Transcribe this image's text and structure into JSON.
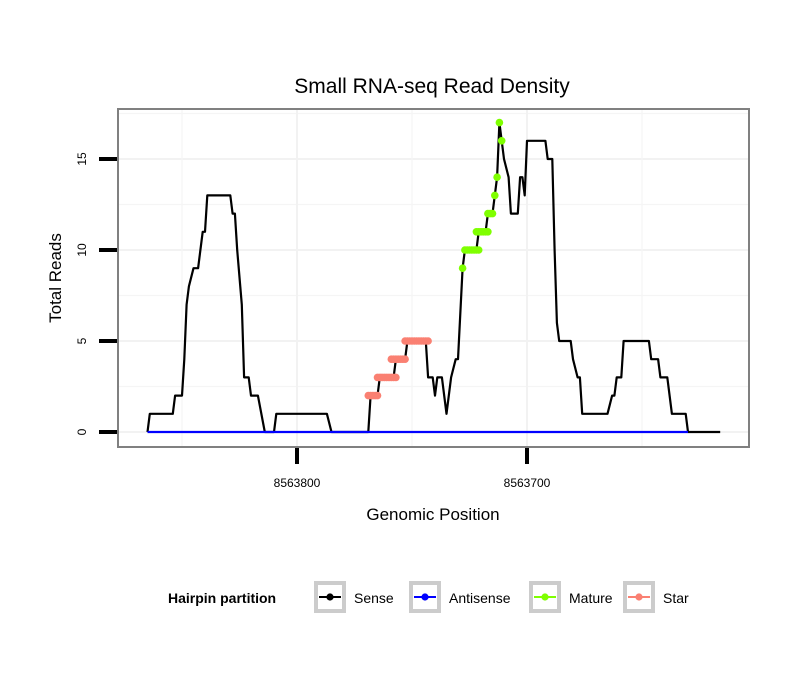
{
  "chart_data": {
    "type": "line",
    "title": "Small RNA-seq Read Density",
    "xlabel": "Genomic Position",
    "ylabel": "Total Reads",
    "x_reversed": true,
    "xlim": [
      8563878,
      8563603
    ],
    "ylim": [
      -0.85,
      17.8
    ],
    "x_ticks": [
      8563800,
      8563700
    ],
    "x_tick_labels": [
      "8563800",
      "8563700"
    ],
    "y_ticks": [
      0,
      5,
      10,
      15
    ],
    "y_tick_labels": [
      "0",
      "5",
      "10",
      "15"
    ],
    "grid": true,
    "legend": {
      "title": "Hairpin partition",
      "position": "bottom",
      "entries": [
        {
          "name": "Sense",
          "color": "#000000"
        },
        {
          "name": "Antisense",
          "color": "#0000ff"
        },
        {
          "name": "Mature",
          "color": "#7fff00"
        },
        {
          "name": "Star",
          "color": "#fa8072"
        }
      ]
    },
    "series": [
      {
        "name": "Sense",
        "color": "#000000",
        "style": "line",
        "points": [
          [
            8563865,
            0
          ],
          [
            8563864,
            1
          ],
          [
            8563854,
            1
          ],
          [
            8563853,
            2
          ],
          [
            8563850,
            2
          ],
          [
            8563849,
            4
          ],
          [
            8563848,
            7
          ],
          [
            8563847,
            8
          ],
          [
            8563845,
            9
          ],
          [
            8563843,
            9
          ],
          [
            8563841,
            11
          ],
          [
            8563840,
            11
          ],
          [
            8563839,
            13
          ],
          [
            8563829,
            13
          ],
          [
            8563828,
            12
          ],
          [
            8563827,
            12
          ],
          [
            8563826,
            10
          ],
          [
            8563824,
            7
          ],
          [
            8563823,
            3
          ],
          [
            8563821,
            3
          ],
          [
            8563820,
            2
          ],
          [
            8563817,
            2
          ],
          [
            8563814,
            0
          ],
          [
            8563810,
            0
          ],
          [
            8563809,
            1
          ],
          [
            8563787,
            1
          ],
          [
            8563785,
            0
          ],
          [
            8563769,
            0
          ],
          [
            8563768,
            2
          ],
          [
            8563765,
            2
          ],
          [
            8563764,
            3
          ],
          [
            8563758,
            3
          ],
          [
            8563757,
            4
          ],
          [
            8563753,
            4
          ],
          [
            8563752,
            5
          ],
          [
            8563744,
            5
          ],
          [
            8563743,
            3
          ],
          [
            8563741,
            3
          ],
          [
            8563740,
            2
          ],
          [
            8563739,
            3
          ],
          [
            8563737,
            3
          ],
          [
            8563735,
            1
          ],
          [
            8563733,
            3
          ],
          [
            8563731,
            4
          ],
          [
            8563730,
            4
          ],
          [
            8563728,
            9
          ],
          [
            8563727,
            10
          ],
          [
            8563722,
            10
          ],
          [
            8563721,
            11
          ],
          [
            8563718,
            11
          ],
          [
            8563717,
            12
          ],
          [
            8563715,
            12
          ],
          [
            8563714,
            13
          ],
          [
            8563713,
            14
          ],
          [
            8563712,
            17
          ],
          [
            8563711,
            16
          ],
          [
            8563710,
            15
          ],
          [
            8563708,
            14
          ],
          [
            8563707,
            12
          ],
          [
            8563704,
            12
          ],
          [
            8563703,
            14
          ],
          [
            8563702,
            14
          ],
          [
            8563701,
            13
          ],
          [
            8563700,
            16
          ],
          [
            8563692,
            16
          ],
          [
            8563691,
            15
          ],
          [
            8563689,
            15
          ],
          [
            8563688,
            10
          ],
          [
            8563687,
            6
          ],
          [
            8563686,
            5
          ],
          [
            8563681,
            5
          ],
          [
            8563680,
            4
          ],
          [
            8563678,
            3
          ],
          [
            8563677,
            3
          ],
          [
            8563676,
            1
          ],
          [
            8563665,
            1
          ],
          [
            8563663,
            2
          ],
          [
            8563662,
            2
          ],
          [
            8563661,
            3
          ],
          [
            8563659,
            3
          ],
          [
            8563658,
            5
          ],
          [
            8563647,
            5
          ],
          [
            8563646,
            4
          ],
          [
            8563643,
            4
          ],
          [
            8563642,
            3
          ],
          [
            8563639,
            3
          ],
          [
            8563637,
            1
          ],
          [
            8563631,
            1
          ],
          [
            8563630,
            0
          ],
          [
            8563616,
            0
          ]
        ]
      },
      {
        "name": "Antisense",
        "color": "#0000ff",
        "style": "line",
        "points": [
          [
            8563865,
            0
          ],
          [
            8563630,
            0
          ]
        ]
      },
      {
        "name": "Mature",
        "color": "#7fff00",
        "style": "points",
        "points": [
          [
            8563728,
            9
          ],
          [
            8563727,
            10
          ],
          [
            8563726,
            10
          ],
          [
            8563725,
            10
          ],
          [
            8563724,
            10
          ],
          [
            8563723,
            10
          ],
          [
            8563722,
            10
          ],
          [
            8563721,
            10
          ],
          [
            8563722,
            11
          ],
          [
            8563721,
            11
          ],
          [
            8563720,
            11
          ],
          [
            8563719,
            11
          ],
          [
            8563718,
            11
          ],
          [
            8563717,
            11
          ],
          [
            8563717,
            12
          ],
          [
            8563716,
            12
          ],
          [
            8563715,
            12
          ],
          [
            8563714,
            13
          ],
          [
            8563713,
            14
          ],
          [
            8563712,
            17
          ],
          [
            8563711,
            16
          ]
        ]
      },
      {
        "name": "Star",
        "color": "#fa8072",
        "style": "points",
        "points": [
          [
            8563769,
            2
          ],
          [
            8563768,
            2
          ],
          [
            8563767,
            2
          ],
          [
            8563766,
            2
          ],
          [
            8563765,
            2
          ],
          [
            8563765,
            3
          ],
          [
            8563764,
            3
          ],
          [
            8563763,
            3
          ],
          [
            8563762,
            3
          ],
          [
            8563761,
            3
          ],
          [
            8563760,
            3
          ],
          [
            8563759,
            3
          ],
          [
            8563758,
            3
          ],
          [
            8563757,
            3
          ],
          [
            8563759,
            4
          ],
          [
            8563758,
            4
          ],
          [
            8563757,
            4
          ],
          [
            8563756,
            4
          ],
          [
            8563755,
            4
          ],
          [
            8563754,
            4
          ],
          [
            8563753,
            4
          ],
          [
            8563753,
            5
          ],
          [
            8563752,
            5
          ],
          [
            8563751,
            5
          ],
          [
            8563750,
            5
          ],
          [
            8563749,
            5
          ],
          [
            8563748,
            5
          ],
          [
            8563747,
            5
          ],
          [
            8563746,
            5
          ],
          [
            8563745,
            5
          ],
          [
            8563744,
            5
          ],
          [
            8563743,
            5
          ]
        ]
      }
    ]
  }
}
